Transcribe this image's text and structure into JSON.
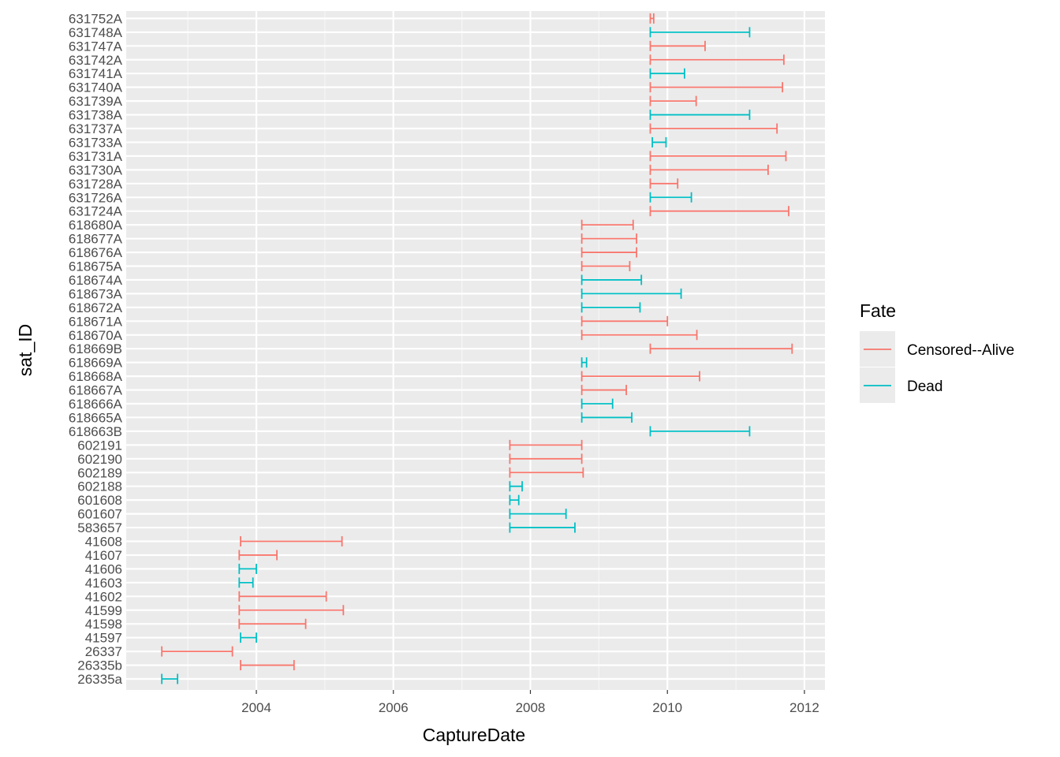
{
  "chart_data": {
    "type": "range",
    "xlabel": "CaptureDate",
    "ylabel": "sat_ID",
    "x_ticks": [
      2004,
      2006,
      2008,
      2010,
      2012
    ],
    "xlim": [
      2002.1,
      2012.3
    ],
    "legend": {
      "title": "Fate",
      "position": "right",
      "entries": [
        {
          "name": "Censored--Alive",
          "color": "#F8766D"
        },
        {
          "name": "Dead",
          "color": "#00BFC4"
        }
      ]
    },
    "rows": [
      {
        "id": "631752A",
        "start": 2009.75,
        "end": 2009.8,
        "fate": "Censored--Alive"
      },
      {
        "id": "631748A",
        "start": 2009.75,
        "end": 2011.2,
        "fate": "Dead"
      },
      {
        "id": "631747A",
        "start": 2009.75,
        "end": 2010.55,
        "fate": "Censored--Alive"
      },
      {
        "id": "631742A",
        "start": 2009.75,
        "end": 2011.7,
        "fate": "Censored--Alive"
      },
      {
        "id": "631741A",
        "start": 2009.75,
        "end": 2010.25,
        "fate": "Dead"
      },
      {
        "id": "631740A",
        "start": 2009.75,
        "end": 2011.68,
        "fate": "Censored--Alive"
      },
      {
        "id": "631739A",
        "start": 2009.75,
        "end": 2010.42,
        "fate": "Censored--Alive"
      },
      {
        "id": "631738A",
        "start": 2009.75,
        "end": 2011.2,
        "fate": "Dead"
      },
      {
        "id": "631737A",
        "start": 2009.75,
        "end": 2011.6,
        "fate": "Censored--Alive"
      },
      {
        "id": "631733A",
        "start": 2009.78,
        "end": 2009.98,
        "fate": "Dead"
      },
      {
        "id": "631731A",
        "start": 2009.75,
        "end": 2011.73,
        "fate": "Censored--Alive"
      },
      {
        "id": "631730A",
        "start": 2009.75,
        "end": 2011.47,
        "fate": "Censored--Alive"
      },
      {
        "id": "631728A",
        "start": 2009.75,
        "end": 2010.15,
        "fate": "Censored--Alive"
      },
      {
        "id": "631726A",
        "start": 2009.75,
        "end": 2010.35,
        "fate": "Dead"
      },
      {
        "id": "631724A",
        "start": 2009.75,
        "end": 2011.77,
        "fate": "Censored--Alive"
      },
      {
        "id": "618680A",
        "start": 2008.75,
        "end": 2009.5,
        "fate": "Censored--Alive"
      },
      {
        "id": "618677A",
        "start": 2008.75,
        "end": 2009.55,
        "fate": "Censored--Alive"
      },
      {
        "id": "618676A",
        "start": 2008.75,
        "end": 2009.55,
        "fate": "Censored--Alive"
      },
      {
        "id": "618675A",
        "start": 2008.75,
        "end": 2009.45,
        "fate": "Censored--Alive"
      },
      {
        "id": "618674A",
        "start": 2008.75,
        "end": 2009.62,
        "fate": "Dead"
      },
      {
        "id": "618673A",
        "start": 2008.75,
        "end": 2010.2,
        "fate": "Dead"
      },
      {
        "id": "618672A",
        "start": 2008.75,
        "end": 2009.6,
        "fate": "Dead"
      },
      {
        "id": "618671A",
        "start": 2008.75,
        "end": 2010.0,
        "fate": "Censored--Alive"
      },
      {
        "id": "618670A",
        "start": 2008.75,
        "end": 2010.43,
        "fate": "Censored--Alive"
      },
      {
        "id": "618669B",
        "start": 2009.75,
        "end": 2011.82,
        "fate": "Censored--Alive"
      },
      {
        "id": "618669A",
        "start": 2008.75,
        "end": 2008.82,
        "fate": "Dead"
      },
      {
        "id": "618668A",
        "start": 2008.75,
        "end": 2010.47,
        "fate": "Censored--Alive"
      },
      {
        "id": "618667A",
        "start": 2008.75,
        "end": 2009.4,
        "fate": "Censored--Alive"
      },
      {
        "id": "618666A",
        "start": 2008.75,
        "end": 2009.2,
        "fate": "Dead"
      },
      {
        "id": "618665A",
        "start": 2008.75,
        "end": 2009.48,
        "fate": "Dead"
      },
      {
        "id": "618663B",
        "start": 2009.75,
        "end": 2011.2,
        "fate": "Dead"
      },
      {
        "id": "602191",
        "start": 2007.7,
        "end": 2008.75,
        "fate": "Censored--Alive"
      },
      {
        "id": "602190",
        "start": 2007.7,
        "end": 2008.75,
        "fate": "Censored--Alive"
      },
      {
        "id": "602189",
        "start": 2007.7,
        "end": 2008.77,
        "fate": "Censored--Alive"
      },
      {
        "id": "602188",
        "start": 2007.7,
        "end": 2007.88,
        "fate": "Dead"
      },
      {
        "id": "601608",
        "start": 2007.7,
        "end": 2007.83,
        "fate": "Dead"
      },
      {
        "id": "601607",
        "start": 2007.7,
        "end": 2008.52,
        "fate": "Dead"
      },
      {
        "id": "583657",
        "start": 2007.7,
        "end": 2008.65,
        "fate": "Dead"
      },
      {
        "id": "41608",
        "start": 2003.77,
        "end": 2005.25,
        "fate": "Censored--Alive"
      },
      {
        "id": "41607",
        "start": 2003.75,
        "end": 2004.3,
        "fate": "Censored--Alive"
      },
      {
        "id": "41606",
        "start": 2003.75,
        "end": 2004.0,
        "fate": "Dead"
      },
      {
        "id": "41603",
        "start": 2003.75,
        "end": 2003.95,
        "fate": "Dead"
      },
      {
        "id": "41602",
        "start": 2003.75,
        "end": 2005.02,
        "fate": "Censored--Alive"
      },
      {
        "id": "41599",
        "start": 2003.75,
        "end": 2005.27,
        "fate": "Censored--Alive"
      },
      {
        "id": "41598",
        "start": 2003.75,
        "end": 2004.72,
        "fate": "Censored--Alive"
      },
      {
        "id": "41597",
        "start": 2003.77,
        "end": 2004.0,
        "fate": "Dead"
      },
      {
        "id": "26337",
        "start": 2002.62,
        "end": 2003.65,
        "fate": "Censored--Alive"
      },
      {
        "id": "26335b",
        "start": 2003.77,
        "end": 2004.55,
        "fate": "Censored--Alive"
      },
      {
        "id": "26335a",
        "start": 2002.62,
        "end": 2002.85,
        "fate": "Dead"
      }
    ]
  }
}
